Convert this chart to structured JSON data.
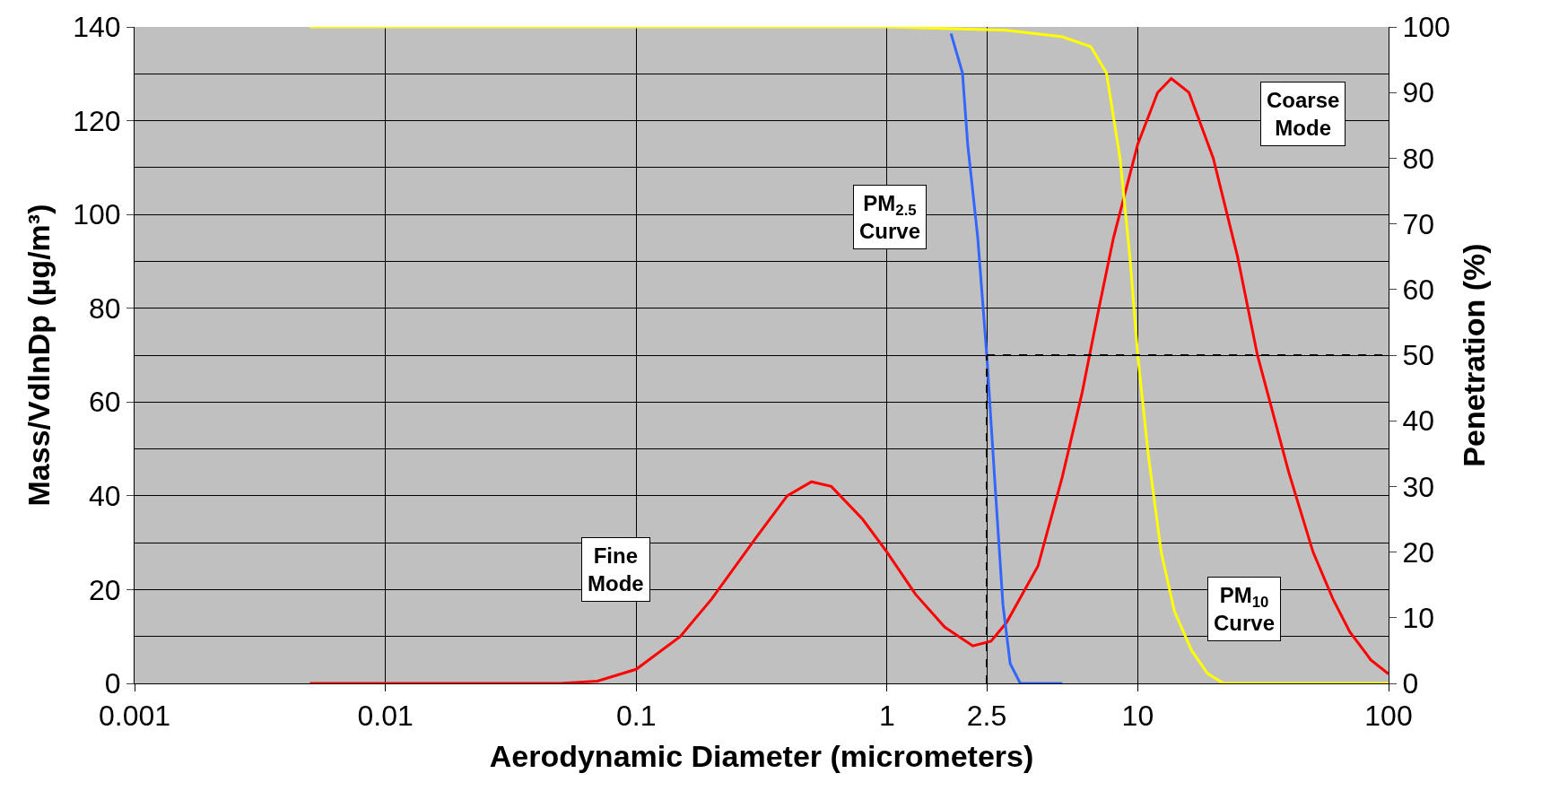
{
  "chart_data": {
    "type": "line",
    "xlabel": "Aerodynamic Diameter (micrometers)",
    "ylabel": "Mass/VdlnDp (µg/m³)",
    "y2label": "Penetration (%)",
    "log": "x",
    "grid": true,
    "legend": false,
    "marker": "none",
    "line_style": "solid",
    "xlim": [
      0.001,
      100
    ],
    "xticks": [
      0.001,
      0.01,
      0.1,
      1,
      2.5,
      10,
      100
    ],
    "ylim": [
      0,
      140
    ],
    "yticks": [
      0,
      20,
      40,
      60,
      80,
      100,
      120,
      140
    ],
    "y2lim": [
      0,
      100
    ],
    "y2ticks": [
      0,
      10,
      20,
      30,
      40,
      50,
      60,
      70,
      80,
      90,
      100
    ],
    "series": [
      {
        "color": "#ff0000",
        "x": [
          0.005,
          0.05,
          0.07,
          0.1,
          0.15,
          0.2,
          0.3,
          0.4,
          0.5,
          0.6,
          0.8,
          1,
          1.3,
          1.7,
          2.2,
          2.6,
          3,
          4,
          5,
          6,
          7,
          8,
          10,
          12,
          13.6,
          16,
          20,
          25,
          30,
          40,
          50,
          60,
          70,
          85,
          100
        ],
        "values": [
          0,
          0,
          0.5,
          3,
          10,
          18,
          31,
          40,
          43,
          42,
          35,
          28,
          19,
          12,
          8,
          9,
          13,
          25,
          44,
          62,
          80,
          95,
          115,
          126,
          129,
          126,
          112,
          91,
          70,
          45,
          28,
          18,
          11,
          5,
          2
        ]
      },
      {
        "color": "#3366ff",
        "axis": "y2",
        "x": [
          1.8,
          2.0,
          2.1,
          2.3,
          2.5,
          2.7,
          2.9,
          3.1,
          3.4,
          5
        ],
        "values": [
          99,
          93,
          82,
          68,
          50,
          30,
          12,
          3,
          0,
          0
        ]
      },
      {
        "color": "#ffff00",
        "axis": "y2",
        "x": [
          0.005,
          1,
          3,
          5,
          6.5,
          7.5,
          8.5,
          9.3,
          10,
          11,
          12.4,
          14,
          16.4,
          19,
          22,
          100
        ],
        "values": [
          100,
          100,
          99.5,
          98.5,
          97,
          93,
          80,
          65,
          50,
          35,
          20,
          11,
          5,
          1.5,
          0,
          0
        ]
      }
    ],
    "ref_lines": [
      {
        "axis": "x",
        "value": 2.5,
        "line_style": "dashed",
        "color": "#000000"
      },
      {
        "axis": "y2",
        "value": 50,
        "line_style": "dashed",
        "color": "#000000"
      }
    ],
    "annotations": [
      "Fine\nMode",
      "PM$_{2.5}$\nCurve",
      "Coarse\nMode",
      "PM$_{10}$\nCurve"
    ]
  }
}
